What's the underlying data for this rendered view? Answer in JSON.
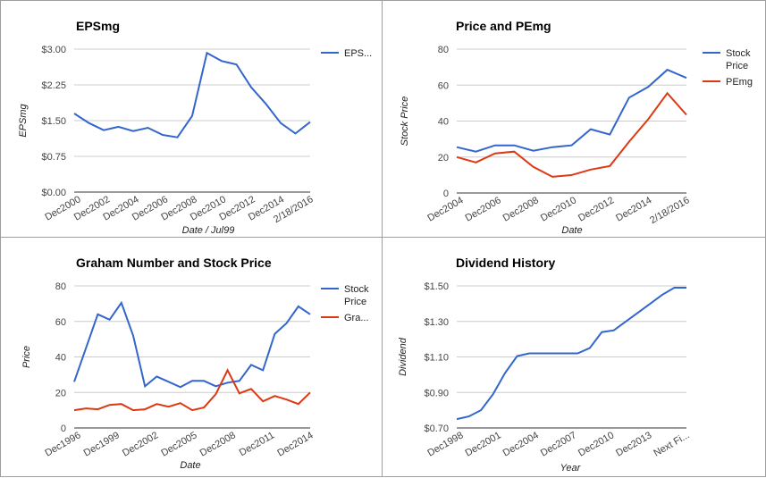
{
  "chart_data": [
    {
      "type": "line",
      "title": "EPSmg",
      "xlabel": "Date / Jul99",
      "ylabel": "EPSmg",
      "y_ticks": [
        "$3.00",
        "$2.25",
        "$1.50",
        "$0.75",
        "$0.00"
      ],
      "ylim": [
        0,
        3
      ],
      "x_tick_labels": [
        "Dec2000",
        "Dec2002",
        "Dec2004",
        "Dec2006",
        "Dec2008",
        "Dec2010",
        "Dec2012",
        "Dec2014",
        "2/18/2016"
      ],
      "series": [
        {
          "name": "EPS...",
          "color": "#3366cc",
          "values": [
            1.65,
            1.45,
            1.3,
            1.37,
            1.28,
            1.35,
            1.2,
            1.15,
            1.6,
            2.92,
            2.75,
            2.68,
            2.2,
            1.85,
            1.45,
            1.23,
            1.47
          ]
        }
      ],
      "legend": "right"
    },
    {
      "type": "line",
      "title": "Price and PEmg",
      "xlabel": "Date",
      "ylabel": "Stock Price",
      "y_ticks": [
        "80",
        "60",
        "40",
        "20",
        "0"
      ],
      "ylim": [
        0,
        80
      ],
      "x_tick_labels": [
        "Dec2004",
        "Dec2006",
        "Dec2008",
        "Dec2010",
        "Dec2012",
        "Dec2014",
        "2/18/2016"
      ],
      "series": [
        {
          "name": "Stock Price",
          "color": "#3366cc",
          "values": [
            25.5,
            23,
            26.5,
            26.5,
            23.5,
            25.5,
            26.5,
            35.5,
            32.5,
            53,
            59,
            68.5,
            64
          ]
        },
        {
          "name": "PEmg",
          "color": "#dc3912",
          "values": [
            20,
            17,
            22,
            23,
            14.5,
            9,
            10,
            13,
            15,
            28.5,
            41,
            55.5,
            43.5
          ]
        }
      ],
      "legend": "right"
    },
    {
      "type": "line",
      "title": "Graham Number and Stock Price",
      "xlabel": "Date",
      "ylabel": "Price",
      "y_ticks": [
        "80",
        "60",
        "40",
        "20",
        "0"
      ],
      "ylim": [
        0,
        80
      ],
      "x_tick_labels": [
        "Dec1996",
        "Dec1999",
        "Dec2002",
        "Dec2005",
        "Dec2008",
        "Dec2011",
        "Dec2014"
      ],
      "series": [
        {
          "name": "Stock Price",
          "color": "#3366cc",
          "values": [
            26,
            45,
            64,
            61,
            70.5,
            52,
            23.5,
            29,
            26,
            23,
            26.5,
            26.5,
            23.5,
            25.5,
            26.5,
            35.5,
            32.5,
            53,
            59,
            68.5,
            64
          ]
        },
        {
          "name": "Gra...",
          "color": "#dc3912",
          "values": [
            10,
            11,
            10.5,
            13,
            13.5,
            10,
            10.5,
            13.5,
            12,
            14,
            10,
            11.5,
            19,
            32.5,
            19.5,
            22,
            15,
            18,
            16,
            13.5,
            20
          ]
        }
      ],
      "legend": "right"
    },
    {
      "type": "line",
      "title": "Dividend History",
      "xlabel": "Year",
      "ylabel": "Dividend",
      "y_ticks": [
        "$1.50",
        "$1.30",
        "$1.10",
        "$0.90",
        "$0.70"
      ],
      "ylim": [
        0.7,
        1.5
      ],
      "x_tick_labels": [
        "Dec1998",
        "Dec2001",
        "Dec2004",
        "Dec2007",
        "Dec2010",
        "Dec2013",
        "Next Fi..."
      ],
      "series": [
        {
          "name": "",
          "color": "#3366cc",
          "values": [
            0.75,
            0.765,
            0.8,
            0.89,
            1.01,
            1.105,
            1.12,
            1.12,
            1.12,
            1.12,
            1.12,
            1.15,
            1.24,
            1.25,
            1.3,
            1.35,
            1.4,
            1.45,
            1.49,
            1.49
          ]
        }
      ],
      "legend": "none"
    }
  ]
}
